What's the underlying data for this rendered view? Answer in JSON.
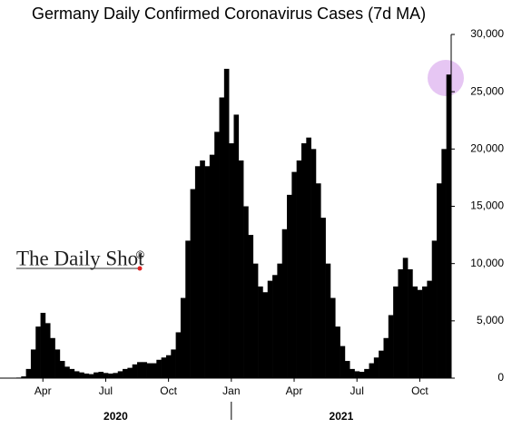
{
  "chart_data": {
    "type": "bar",
    "title": "Germany Daily Confirmed Coronavirus Cases (7d MA)",
    "watermark": "The Daily Shot",
    "watermark_mark": "®",
    "color": "#000000",
    "categories": [
      null,
      null,
      null,
      null,
      null,
      null,
      null,
      null,
      "Apr",
      null,
      null,
      null,
      null,
      null,
      null,
      null,
      null,
      null,
      null,
      null,
      null,
      "Jul",
      null,
      null,
      null,
      null,
      null,
      null,
      null,
      null,
      null,
      null,
      null,
      null,
      "Oct",
      null,
      null,
      null,
      null,
      null,
      null,
      null,
      null,
      null,
      null,
      null,
      null,
      "Jan",
      null,
      null,
      null,
      null,
      null,
      null,
      null,
      null,
      null,
      null,
      null,
      null,
      "Apr",
      null,
      null,
      null,
      null,
      null,
      null,
      null,
      null,
      null,
      null,
      null,
      null,
      "Jul",
      null,
      null,
      null,
      null,
      null,
      null,
      null,
      null,
      null,
      null,
      null,
      null,
      "Oct",
      null,
      null,
      null,
      null,
      null,
      null
    ],
    "x_groups": [
      "2020",
      "2021"
    ],
    "values": [
      0,
      0,
      0,
      50,
      150,
      800,
      2500,
      4500,
      5700,
      4800,
      3500,
      2500,
      1500,
      1000,
      800,
      600,
      500,
      400,
      350,
      500,
      550,
      450,
      400,
      450,
      600,
      800,
      900,
      1200,
      1400,
      1400,
      1300,
      1300,
      1600,
      1800,
      2000,
      2500,
      4000,
      7000,
      12000,
      16500,
      18500,
      19000,
      18500,
      19500,
      21500,
      24500,
      27000,
      20500,
      23000,
      19000,
      15000,
      12500,
      10000,
      8000,
      7500,
      8500,
      9000,
      10000,
      13000,
      16000,
      18000,
      19000,
      20500,
      21000,
      20000,
      17000,
      14000,
      10000,
      7000,
      4500,
      2800,
      1500,
      800,
      600,
      550,
      800,
      1300,
      1800,
      2400,
      3500,
      5500,
      8000,
      9500,
      10500,
      9500,
      8000,
      7700,
      8000,
      8500,
      12000,
      17000,
      20000,
      26500
    ],
    "ylim": [
      0,
      30000
    ],
    "yticks": [
      {
        "value": 0,
        "label": "0"
      },
      {
        "value": 5000,
        "label": "5,000"
      },
      {
        "value": 10000,
        "label": "10,000"
      },
      {
        "value": 15000,
        "label": "15,000"
      },
      {
        "value": 20000,
        "label": "20,000"
      },
      {
        "value": 25000,
        "label": "25,000"
      },
      {
        "value": 30000,
        "label": "30,000"
      }
    ]
  }
}
